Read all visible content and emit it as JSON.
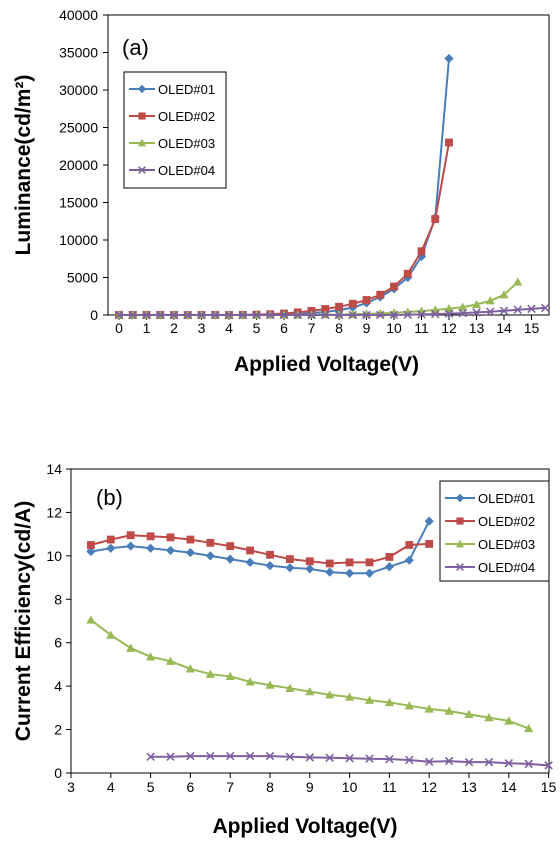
{
  "chart_data": [
    {
      "type": "line",
      "panel_label": "(a)",
      "xlabel": "Applied Voltage(V)",
      "ylabel": "Luminance(cd/m²)",
      "xlim": [
        0,
        15.5
      ],
      "ylim": [
        0,
        40000
      ],
      "xticks": [
        0,
        1,
        2,
        3,
        4,
        5,
        6,
        7,
        8,
        9,
        10,
        11,
        12,
        13,
        14,
        15
      ],
      "xtick_labels": [
        "0",
        "1",
        "2",
        "3",
        "4",
        "5",
        "6",
        "7",
        "8",
        "9",
        "10",
        "11",
        "12",
        "13",
        "14",
        "15"
      ],
      "yticks": [
        0,
        5000,
        10000,
        15000,
        20000,
        25000,
        30000,
        35000,
        40000
      ],
      "ytick_labels": [
        "0",
        "5000",
        "10000",
        "15000",
        "20000",
        "25000",
        "30000",
        "35000",
        "40000"
      ],
      "grid": false,
      "legend_position": "top-left",
      "series": [
        {
          "name": "OLED#01",
          "color": "#4a7ebb",
          "marker": "diamond",
          "x": [
            0,
            0.5,
            1,
            1.5,
            2,
            2.5,
            3,
            3.5,
            4,
            4.5,
            5,
            5.5,
            6,
            6.5,
            7,
            7.5,
            8,
            8.5,
            9,
            9.5,
            10,
            10.5,
            11,
            11.5,
            12
          ],
          "y": [
            0,
            0,
            0,
            0,
            0,
            0,
            0,
            0,
            0,
            0,
            20,
            40,
            80,
            150,
            250,
            400,
            650,
            1000,
            1600,
            2400,
            3500,
            5000,
            7800,
            13000,
            34200
          ]
        },
        {
          "name": "OLED#02",
          "color": "#be4b48",
          "marker": "square",
          "x": [
            0,
            0.5,
            1,
            1.5,
            2,
            2.5,
            3,
            3.5,
            4,
            4.5,
            5,
            5.5,
            6,
            6.5,
            7,
            7.5,
            8,
            8.5,
            9,
            9.5,
            10,
            10.5,
            11,
            11.5,
            12
          ],
          "y": [
            0,
            0,
            0,
            0,
            0,
            0,
            0,
            0,
            0,
            10,
            50,
            100,
            200,
            350,
            550,
            800,
            1100,
            1500,
            2000,
            2700,
            3800,
            5500,
            8500,
            12800,
            23000
          ]
        },
        {
          "name": "OLED#03",
          "color": "#98b954",
          "marker": "triangle",
          "x": [
            0,
            0.5,
            1,
            1.5,
            2,
            2.5,
            3,
            3.5,
            4,
            4.5,
            5,
            5.5,
            6,
            6.5,
            7,
            7.5,
            8,
            8.5,
            9,
            9.5,
            10,
            10.5,
            11,
            11.5,
            12,
            12.5,
            13,
            13.5,
            14,
            14.5
          ],
          "y": [
            0,
            0,
            0,
            0,
            0,
            0,
            0,
            0,
            0,
            0,
            0,
            0,
            0,
            10,
            20,
            40,
            60,
            100,
            150,
            220,
            300,
            400,
            520,
            680,
            850,
            1050,
            1400,
            1900,
            2700,
            4400
          ]
        },
        {
          "name": "OLED#04",
          "color": "#7d60a0",
          "marker": "x",
          "x": [
            0,
            0.5,
            1,
            1.5,
            2,
            2.5,
            3,
            3.5,
            4,
            4.5,
            5,
            5.5,
            6,
            6.5,
            7,
            7.5,
            8,
            8.5,
            9,
            9.5,
            10,
            10.5,
            11,
            11.5,
            12,
            12.5,
            13,
            13.5,
            14,
            14.5,
            15,
            15.5
          ],
          "y": [
            0,
            0,
            0,
            0,
            0,
            0,
            0,
            0,
            0,
            0,
            0,
            0,
            0,
            0,
            0,
            0,
            0,
            0,
            0,
            0,
            20,
            40,
            80,
            120,
            180,
            250,
            340,
            440,
            560,
            700,
            820,
            950
          ]
        }
      ]
    },
    {
      "type": "line",
      "panel_label": "(b)",
      "xlabel": "Applied Voltage(V)",
      "ylabel": "Current Efficiency(cd/A)",
      "xlim": [
        3,
        15
      ],
      "ylim": [
        0,
        14
      ],
      "xticks": [
        3,
        4,
        5,
        6,
        7,
        8,
        9,
        10,
        11,
        12,
        13,
        14,
        15
      ],
      "xtick_labels": [
        "3",
        "4",
        "5",
        "6",
        "7",
        "8",
        "9",
        "10",
        "11",
        "12",
        "13",
        "14",
        "15"
      ],
      "yticks": [
        0,
        2,
        4,
        6,
        8,
        10,
        12,
        14
      ],
      "ytick_labels": [
        "0",
        "2",
        "4",
        "6",
        "8",
        "10",
        "12",
        "14"
      ],
      "grid": false,
      "legend_position": "top-right",
      "series": [
        {
          "name": "OLED#01",
          "color": "#4a7ebb",
          "marker": "diamond",
          "x": [
            3.5,
            4,
            4.5,
            5,
            5.5,
            6,
            6.5,
            7,
            7.5,
            8,
            8.5,
            9,
            9.5,
            10,
            10.5,
            11,
            11.5,
            12
          ],
          "y": [
            10.2,
            10.35,
            10.45,
            10.35,
            10.25,
            10.15,
            10.0,
            9.85,
            9.7,
            9.55,
            9.45,
            9.4,
            9.25,
            9.2,
            9.2,
            9.5,
            9.8,
            11.6
          ]
        },
        {
          "name": "OLED#02",
          "color": "#be4b48",
          "marker": "square",
          "x": [
            3.5,
            4,
            4.5,
            5,
            5.5,
            6,
            6.5,
            7,
            7.5,
            8,
            8.5,
            9,
            9.5,
            10,
            10.5,
            11,
            11.5,
            12
          ],
          "y": [
            10.5,
            10.75,
            10.95,
            10.9,
            10.85,
            10.75,
            10.6,
            10.45,
            10.25,
            10.05,
            9.85,
            9.75,
            9.65,
            9.7,
            9.7,
            9.95,
            10.5,
            10.55
          ]
        },
        {
          "name": "OLED#03",
          "color": "#98b954",
          "marker": "triangle",
          "x": [
            3.5,
            4,
            4.5,
            5,
            5.5,
            6,
            6.5,
            7,
            7.5,
            8,
            8.5,
            9,
            9.5,
            10,
            10.5,
            11,
            11.5,
            12,
            12.5,
            13,
            13.5,
            14,
            14.5
          ],
          "y": [
            7.05,
            6.35,
            5.75,
            5.35,
            5.15,
            4.8,
            4.55,
            4.45,
            4.2,
            4.05,
            3.9,
            3.75,
            3.6,
            3.5,
            3.35,
            3.25,
            3.1,
            2.95,
            2.85,
            2.7,
            2.55,
            2.4,
            2.05
          ]
        },
        {
          "name": "OLED#04",
          "color": "#7d60a0",
          "marker": "x",
          "x": [
            5,
            5.5,
            6,
            6.5,
            7,
            7.5,
            8,
            8.5,
            9,
            9.5,
            10,
            10.5,
            11,
            11.5,
            12,
            12.5,
            13,
            13.5,
            14,
            14.5,
            15
          ],
          "y": [
            0.75,
            0.75,
            0.78,
            0.78,
            0.78,
            0.78,
            0.78,
            0.75,
            0.72,
            0.7,
            0.68,
            0.66,
            0.64,
            0.6,
            0.52,
            0.55,
            0.5,
            0.5,
            0.45,
            0.42,
            0.35
          ]
        }
      ]
    }
  ]
}
